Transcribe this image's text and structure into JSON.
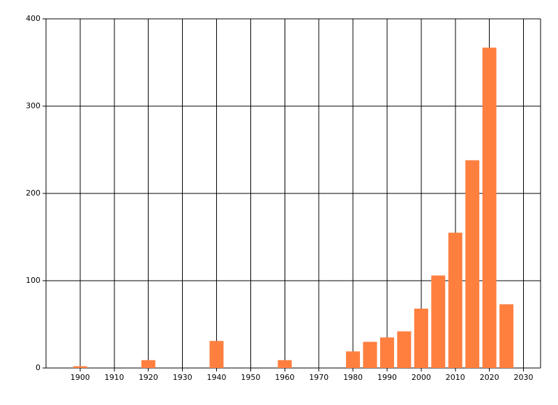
{
  "chart_data": {
    "type": "bar",
    "x": [
      1900,
      1920,
      1940,
      1960,
      1980,
      1985,
      1990,
      1995,
      2000,
      2005,
      2010,
      2015,
      2020,
      2025
    ],
    "values": [
      2,
      9,
      31,
      9,
      19,
      30,
      35,
      42,
      68,
      106,
      155,
      238,
      367,
      73
    ],
    "color": "#ff7f3f",
    "xlim": [
      1890,
      2035
    ],
    "xticks": [
      1900,
      1910,
      1920,
      1930,
      1940,
      1950,
      1960,
      1970,
      1980,
      1990,
      2000,
      2010,
      2020,
      2030
    ],
    "ylim": [
      0,
      400
    ],
    "yticks": [
      0,
      100,
      200,
      300,
      400
    ],
    "grid": true
  }
}
